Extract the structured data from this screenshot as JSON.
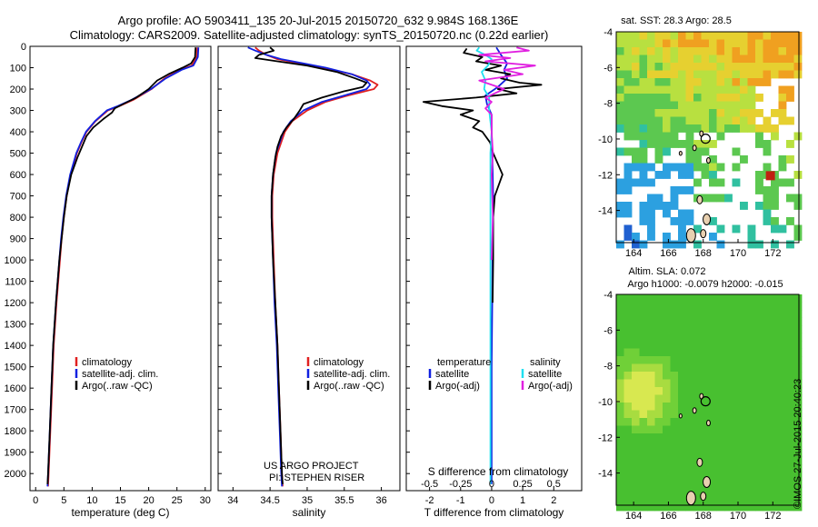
{
  "header": {
    "line1": "Argo profile: AO 5903411_135 20-Jul-2015 20150720_632 9.984S 168.136E",
    "line2": "Climatology: CARS2009. Satellite-adjusted climatology: synTS_20150720.nc (0.22d earlier)"
  },
  "credit": "©IMOS 27-Jul-2015 20:40:23",
  "colors": {
    "climatology": "#e02020",
    "satellite": "#1020e0",
    "argo": "#000000",
    "satellite_s": "#20e0f0",
    "argo_s": "#e020e0"
  },
  "chart_data": [
    {
      "id": "temperature",
      "type": "line",
      "xlabel": "temperature (deg C)",
      "ylabel": "",
      "xlim": [
        -1,
        31
      ],
      "ylim": [
        2080,
        0
      ],
      "xticks": [
        0,
        5,
        10,
        15,
        20,
        25,
        30
      ],
      "yticks": [
        0,
        100,
        200,
        300,
        400,
        500,
        600,
        700,
        800,
        900,
        1000,
        1100,
        1200,
        1300,
        1400,
        1500,
        1600,
        1700,
        1800,
        1900,
        2000
      ],
      "legend": [
        "climatology",
        "satellite-adj. clim.",
        "Argo(..raw -QC)"
      ],
      "series": [
        {
          "name": "climatology",
          "color_key": "climatology",
          "depth": [
            5,
            50,
            90,
            110,
            150,
            200,
            250,
            280,
            300,
            350,
            400,
            450,
            500,
            600,
            700,
            800,
            900,
            1000,
            1200,
            1400,
            1600,
            1800,
            2000,
            2060
          ],
          "values": [
            28.6,
            28.5,
            27.6,
            25.5,
            22.8,
            20.5,
            17.3,
            14.8,
            12.8,
            10.6,
            9.0,
            8.1,
            7.3,
            6.2,
            5.5,
            5.0,
            4.6,
            4.3,
            3.7,
            3.2,
            2.9,
            2.6,
            2.3,
            2.2
          ]
        },
        {
          "name": "satellite-adj. clim.",
          "color_key": "satellite",
          "depth": [
            5,
            50,
            90,
            110,
            150,
            200,
            250,
            280,
            300,
            350,
            400,
            450,
            500,
            600,
            700,
            800,
            900,
            1000,
            1200,
            1400,
            1600,
            1800,
            2000,
            2060
          ],
          "values": [
            28.8,
            28.7,
            27.9,
            25.8,
            23.0,
            20.4,
            17.0,
            14.5,
            12.6,
            10.5,
            8.9,
            8.0,
            7.2,
            6.1,
            5.4,
            4.9,
            4.5,
            4.2,
            3.6,
            3.1,
            2.8,
            2.5,
            2.2,
            2.1
          ]
        },
        {
          "name": "Argo(..raw -QC)",
          "color_key": "argo",
          "depth": [
            5,
            50,
            80,
            100,
            130,
            160,
            200,
            240,
            270,
            290,
            310,
            340,
            380,
            420,
            470,
            520,
            600,
            700,
            800,
            1000,
            1200,
            1400,
            1600,
            1800,
            2000,
            2050
          ],
          "values": [
            28.3,
            28.2,
            27.5,
            26.0,
            23.5,
            21.5,
            20.0,
            17.8,
            15.5,
            14.0,
            13.5,
            12.0,
            10.2,
            9.0,
            8.2,
            7.4,
            6.3,
            5.5,
            5.0,
            4.2,
            3.6,
            3.1,
            2.8,
            2.5,
            2.2,
            2.1
          ]
        }
      ]
    },
    {
      "id": "salinity",
      "type": "line",
      "xlabel": "salinity",
      "xlim": [
        33.8,
        36.25
      ],
      "ylim": [
        2080,
        0
      ],
      "xticks": [
        34,
        34.5,
        35,
        35.5,
        36
      ],
      "xticklabels": [
        "34",
        "34.5",
        "35",
        "35.5",
        "36"
      ],
      "legend": [
        "climatology",
        "satellite-adj. clim.",
        "Argo(..raw -QC)"
      ],
      "annotations": [
        "US ARGO PROJECT",
        "PI: STEPHEN RISER"
      ],
      "series": [
        {
          "name": "climatology",
          "color_key": "climatology",
          "depth": [
            5,
            20,
            40,
            60,
            80,
            100,
            130,
            160,
            180,
            200,
            230,
            260,
            300,
            350,
            400,
            500,
            600,
            700,
            800,
            1000,
            1200,
            1400,
            1600,
            1800,
            2000,
            2060
          ],
          "values": [
            34.3,
            34.35,
            34.45,
            34.6,
            34.9,
            35.2,
            35.6,
            35.85,
            35.95,
            35.9,
            35.55,
            35.25,
            35.0,
            34.8,
            34.7,
            34.6,
            34.55,
            34.53,
            34.53,
            34.55,
            34.57,
            34.6,
            34.62,
            34.64,
            34.66,
            34.67
          ]
        },
        {
          "name": "satellite-adj. clim.",
          "color_key": "satellite",
          "depth": [
            5,
            20,
            40,
            60,
            80,
            100,
            130,
            160,
            180,
            200,
            230,
            260,
            300,
            350,
            400,
            500,
            600,
            700,
            800,
            1000,
            1200,
            1400,
            1600,
            1800,
            2000,
            2060
          ],
          "values": [
            34.2,
            34.3,
            34.45,
            34.65,
            34.95,
            35.25,
            35.6,
            35.8,
            35.85,
            35.8,
            35.5,
            35.2,
            34.95,
            34.78,
            34.68,
            34.58,
            34.54,
            34.52,
            34.52,
            34.54,
            34.56,
            34.59,
            34.61,
            34.63,
            34.65,
            34.66
          ]
        },
        {
          "name": "Argo(..raw -QC)",
          "color_key": "argo",
          "depth": [
            5,
            20,
            40,
            55,
            70,
            90,
            120,
            150,
            170,
            190,
            210,
            240,
            270,
            300,
            340,
            380,
            420,
            470,
            520,
            600,
            700,
            800,
            1000,
            1200,
            1400,
            1600,
            1800,
            2000,
            2050
          ],
          "values": [
            34.5,
            34.55,
            34.35,
            34.3,
            34.6,
            35.0,
            35.4,
            35.65,
            35.8,
            35.75,
            35.5,
            35.2,
            34.95,
            34.9,
            34.82,
            34.72,
            34.65,
            34.6,
            34.57,
            34.54,
            34.52,
            34.52,
            34.54,
            34.57,
            34.6,
            34.62,
            34.64,
            34.66,
            34.67
          ]
        }
      ]
    },
    {
      "id": "differences",
      "type": "line",
      "xlabel": "T difference from climatology",
      "top_xlabel": "S difference from climatology",
      "xlim": [
        -2.75,
        2.9
      ],
      "ylim": [
        2080,
        0
      ],
      "xticks": [
        -2,
        -1,
        0,
        1,
        2
      ],
      "top_ticks": [
        -0.5,
        -0.25,
        0,
        0.25,
        0.5
      ],
      "top_ticklabels": [
        "-0.5",
        "-0.25",
        "0",
        "0.25",
        "0.5"
      ],
      "legend_headers": [
        "temperature",
        "salinity"
      ],
      "legend": [
        "satellite",
        "Argo(-adj)",
        "satellite",
        "Argo(-adj)"
      ],
      "series": [
        {
          "name": "T satellite",
          "color_key": "satellite",
          "units": "degC",
          "depth": [
            5,
            40,
            80,
            110,
            150,
            190,
            230,
            270,
            320,
            400,
            500,
            700,
            900,
            1200,
            1500,
            1800,
            2050
          ],
          "values": [
            0.15,
            0.3,
            0.5,
            0.4,
            0.5,
            0.2,
            -0.2,
            -0.15,
            0.0,
            0.0,
            0.02,
            0.05,
            0.03,
            0.02,
            0.0,
            0.0,
            0.0
          ]
        },
        {
          "name": "T Argo(-adj)",
          "color_key": "argo",
          "units": "degC",
          "depth": [
            10,
            30,
            50,
            70,
            90,
            110,
            130,
            150,
            170,
            180,
            200,
            220,
            240,
            260,
            280,
            300,
            320,
            350,
            380,
            400,
            450,
            500,
            600,
            700,
            800,
            900,
            1000,
            1200
          ],
          "values": [
            -0.8,
            -0.9,
            -0.3,
            -0.5,
            0.3,
            -0.2,
            0.6,
            0.3,
            0.9,
            1.6,
            0.2,
            0.8,
            -0.5,
            -2.2,
            -1.6,
            -0.6,
            -1.0,
            -0.4,
            -0.6,
            -0.3,
            -0.05,
            0.05,
            0.35,
            0.1,
            0.05,
            0.05,
            0.05,
            0.03
          ]
        },
        {
          "name": "S satellite",
          "color_key": "satellite_s",
          "units": "psu",
          "depth": [
            5,
            20,
            40,
            60,
            90,
            120,
            160,
            200,
            240,
            300,
            400,
            500,
            700,
            1000,
            1400,
            1800,
            2050
          ],
          "values": [
            -0.1,
            -0.12,
            -0.05,
            0.0,
            -0.03,
            -0.08,
            -0.05,
            -0.06,
            -0.02,
            -0.02,
            0.0,
            -0.01,
            -0.01,
            -0.01,
            -0.01,
            -0.01,
            -0.01
          ]
        },
        {
          "name": "S Argo(-adj)",
          "color_key": "argo_s",
          "units": "psu",
          "depth": [
            5,
            20,
            40,
            55,
            70,
            90,
            110,
            130,
            160,
            200,
            240,
            260,
            290,
            320,
            360,
            400,
            500,
            600,
            800,
            1000
          ],
          "values": [
            0.2,
            0.3,
            -0.1,
            0.15,
            -0.05,
            0.35,
            0.1,
            0.25,
            -0.1,
            0.1,
            -0.05,
            0.0,
            -0.05,
            0.0,
            0.0,
            0.0,
            0.01,
            0.0,
            0.01,
            0.0
          ]
        }
      ]
    },
    {
      "id": "sst_map",
      "type": "heatmap",
      "title": "sat. SST: 28.3  Argo: 28.5",
      "xlim": [
        163,
        173.5
      ],
      "ylim": [
        -15.8,
        -4
      ],
      "xticks": [
        164,
        166,
        168,
        170,
        172
      ],
      "yticks": [
        -4,
        -6,
        -8,
        -10,
        -12,
        -14
      ],
      "marker_lon": 168.136,
      "marker_lat": -9.984
    },
    {
      "id": "sla_map",
      "type": "heatmap",
      "title": "Altim. SLA: 0.072",
      "subtitle": "Argo h1000: -0.0079 h2000: -0.015",
      "xlim": [
        163,
        173.5
      ],
      "ylim": [
        -15.8,
        -4
      ],
      "xticks": [
        164,
        166,
        168,
        170,
        172
      ],
      "yticks": [
        -4,
        -6,
        -8,
        -10,
        -12,
        -14
      ],
      "marker_lon": 168.136,
      "marker_lat": -9.984
    }
  ]
}
